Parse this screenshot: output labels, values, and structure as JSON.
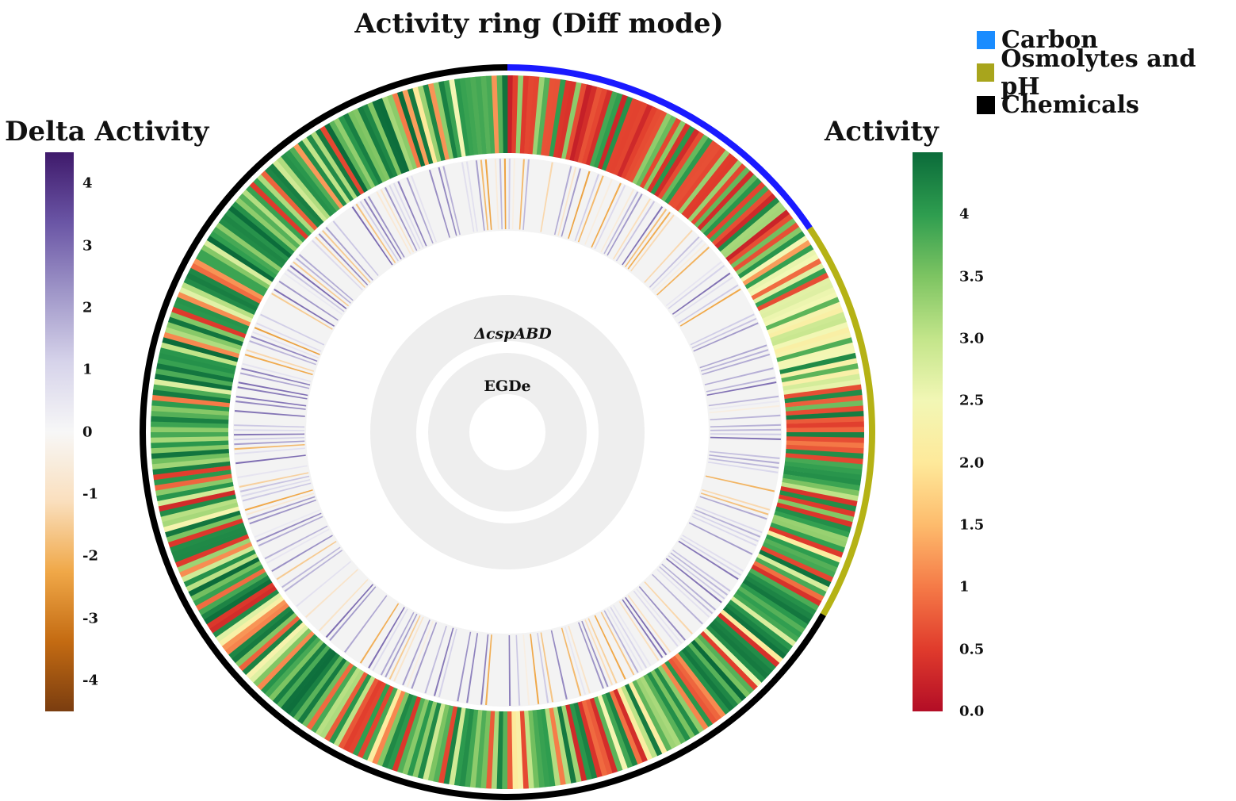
{
  "chart_data": {
    "type": "circular-heatmap",
    "title": "Activity ring (Diff mode)",
    "rings": [
      {
        "name": "Activity",
        "sample": "outer"
      },
      {
        "name": "Delta Activity",
        "sample": "ΔcspABD"
      }
    ],
    "ring_labels": [
      "ΔcspABD",
      "EGDe"
    ],
    "categories": [
      {
        "name": "Carbon",
        "color": "#1a1aff",
        "start_deg": 0,
        "end_deg": 56
      },
      {
        "name": "Osmolytes and pH",
        "color": "#b5b215",
        "start_deg": 56,
        "end_deg": 120
      },
      {
        "name": "Chemicals",
        "color": "#000000",
        "start_deg": 120,
        "end_deg": 360
      }
    ],
    "legend_items": [
      {
        "label": "Carbon",
        "color": "#1a8cff"
      },
      {
        "label": "Osmolytes and pH",
        "color": "#a8a51c"
      },
      {
        "label": "Chemicals",
        "color": "#000000"
      }
    ],
    "delta_scale": {
      "title": "Delta Activity",
      "range": [
        -4.5,
        4.5
      ],
      "ticks": [
        "4",
        "3",
        "2",
        "1",
        "0",
        "-1",
        "-2",
        "-3",
        "-4"
      ],
      "tick_values": [
        4,
        3,
        2,
        1,
        0,
        -1,
        -2,
        -3,
        -4
      ],
      "colors": [
        "#7a3d10",
        "#c46b12",
        "#f0a848",
        "#fadfbd",
        "#f7f7f7",
        "#d6d3ea",
        "#9f96c8",
        "#6a55a5",
        "#3f1a6b"
      ]
    },
    "activity_scale": {
      "title": "Activity",
      "range": [
        0,
        4.5
      ],
      "ticks": [
        "4",
        "3.5",
        "3.0",
        "2.5",
        "2.0",
        "1.5",
        "1",
        "0.5",
        "0.0"
      ],
      "tick_values": [
        4,
        3.5,
        3.0,
        2.5,
        2.0,
        1.5,
        1,
        0.5,
        0.0
      ],
      "colors": [
        "#b30d26",
        "#e03b2c",
        "#f57a47",
        "#fdbb6c",
        "#fee99a",
        "#f2f7b5",
        "#c3e58a",
        "#7dc462",
        "#2e9d4f",
        "#0b6b3a"
      ]
    }
  }
}
